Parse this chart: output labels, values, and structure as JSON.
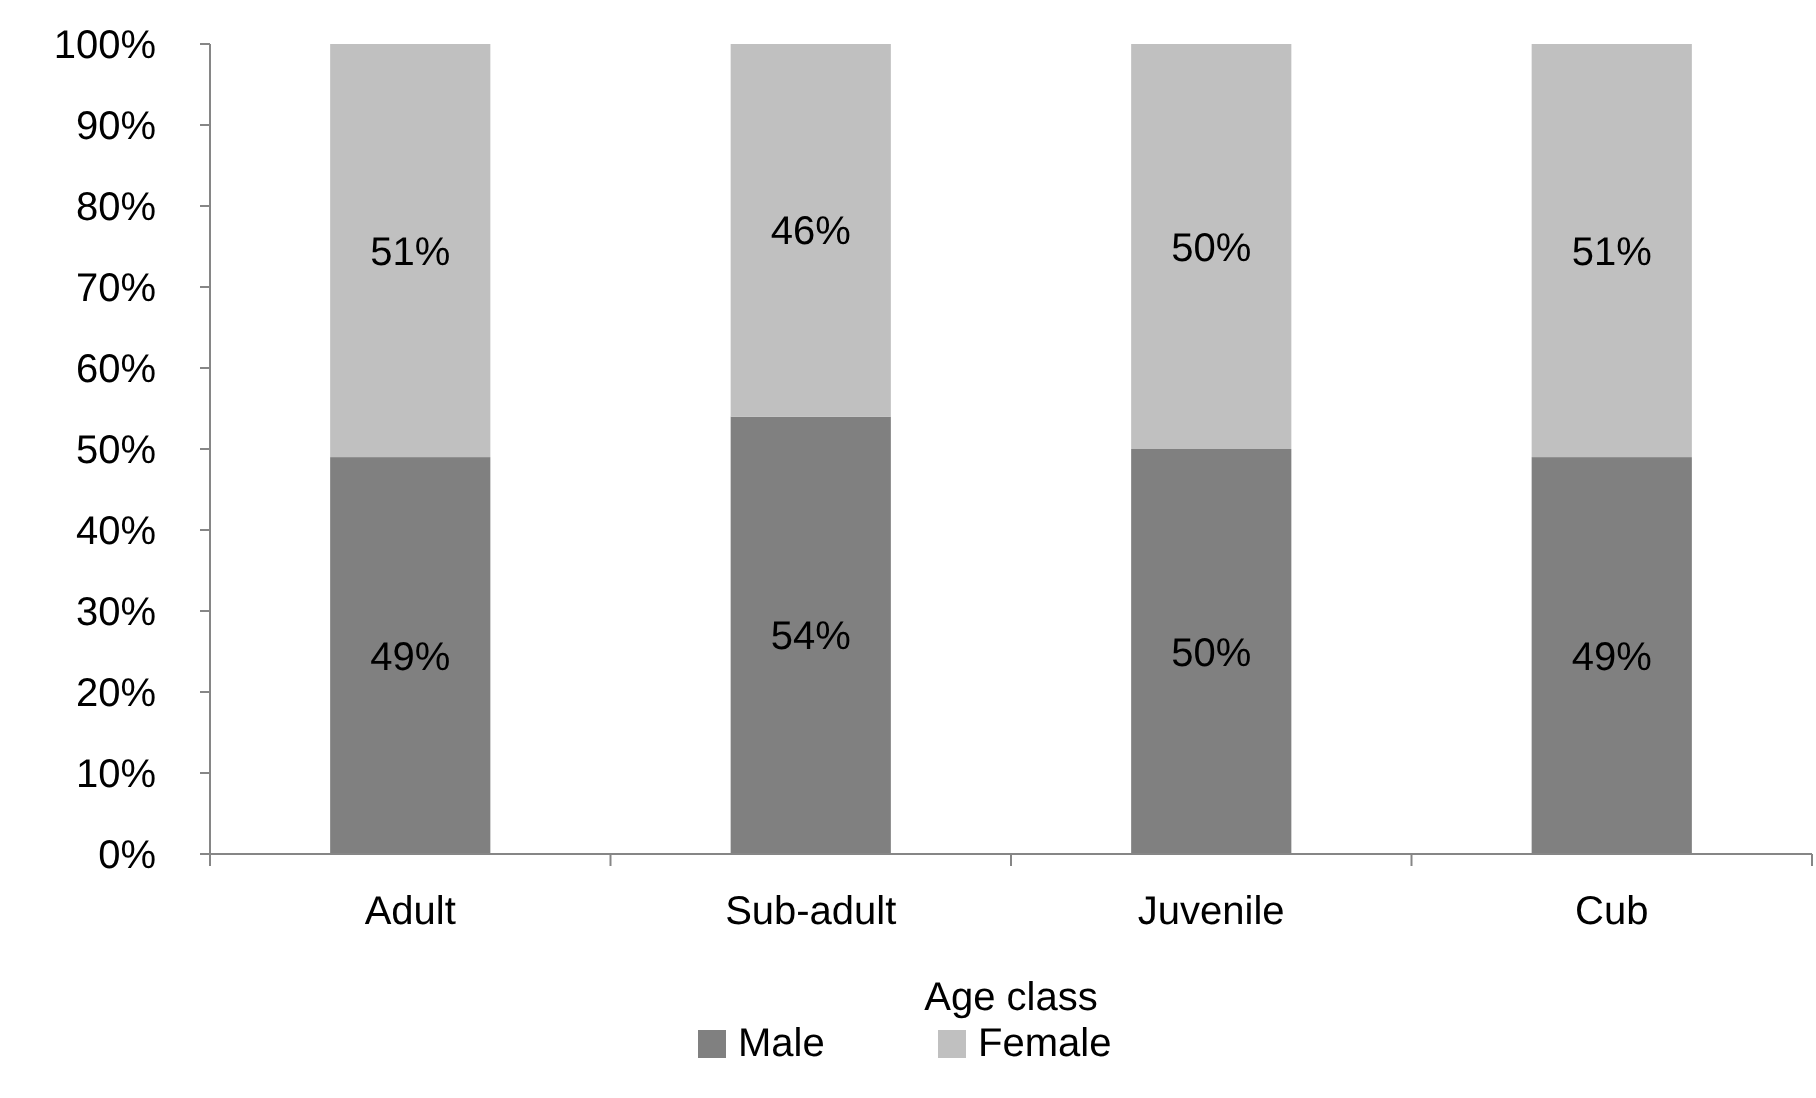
{
  "chart_data": {
    "type": "bar",
    "stacked": true,
    "xlabel": "Age class",
    "categories": [
      "Adult",
      "Sub-adult",
      "Juvenile",
      "Cub"
    ],
    "series": [
      {
        "name": "Male",
        "color": "#808080",
        "values": [
          49,
          54,
          50,
          49
        ],
        "value_labels": [
          "49%",
          "54%",
          "50%",
          "49%"
        ]
      },
      {
        "name": "Female",
        "color": "#c0c0c0",
        "values": [
          51,
          46,
          50,
          51
        ],
        "value_labels": [
          "51%",
          "46%",
          "50%",
          "51%"
        ]
      }
    ],
    "ylim": [
      0,
      100
    ],
    "yticks": [
      {
        "value": 0,
        "label": "0%"
      },
      {
        "value": 10,
        "label": "10%"
      },
      {
        "value": 20,
        "label": "20%"
      },
      {
        "value": 30,
        "label": "30%"
      },
      {
        "value": 40,
        "label": "40%"
      },
      {
        "value": 50,
        "label": "50%"
      },
      {
        "value": 60,
        "label": "60%"
      },
      {
        "value": 70,
        "label": "70%"
      },
      {
        "value": 80,
        "label": "80%"
      },
      {
        "value": 90,
        "label": "90%"
      },
      {
        "value": 100,
        "label": "100%"
      }
    ],
    "grid": false,
    "legend": "bottom"
  }
}
